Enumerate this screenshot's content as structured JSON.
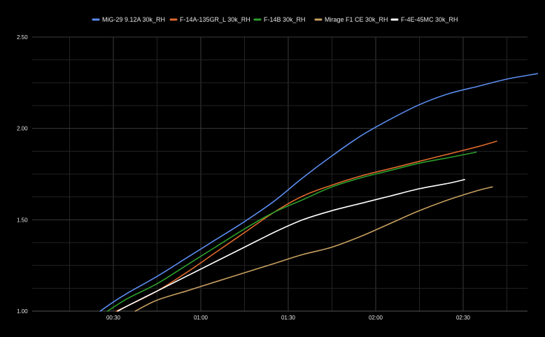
{
  "chart_data": {
    "type": "line",
    "title": "",
    "xlabel": "",
    "ylabel": "",
    "x_unit": "seconds",
    "xlim": [
      0,
      180
    ],
    "ylim": [
      1.0,
      2.5
    ],
    "x_ticks": [
      {
        "value": 30,
        "label": "00:30"
      },
      {
        "value": 60,
        "label": "01:00"
      },
      {
        "value": 90,
        "label": "01:30"
      },
      {
        "value": 120,
        "label": "02:00"
      },
      {
        "value": 150,
        "label": "02:30"
      }
    ],
    "y_ticks": [
      {
        "value": 1.0,
        "label": "1.00"
      },
      {
        "value": 1.5,
        "label": "1.50"
      },
      {
        "value": 2.0,
        "label": "2.00"
      },
      {
        "value": 2.5,
        "label": "2.50"
      }
    ],
    "grid": true,
    "legend_position": "top-center",
    "background": "#000000",
    "series": [
      {
        "name": "MiG-29 9.12A 30k_RH",
        "color": "#5b8def",
        "points": [
          [
            25.5,
            1.0
          ],
          [
            30,
            1.05
          ],
          [
            35,
            1.1
          ],
          [
            45,
            1.19
          ],
          [
            55,
            1.29
          ],
          [
            65,
            1.39
          ],
          [
            75,
            1.49
          ],
          [
            85,
            1.6
          ],
          [
            95,
            1.73
          ],
          [
            105,
            1.85
          ],
          [
            115,
            1.96
          ],
          [
            125,
            2.05
          ],
          [
            135,
            2.13
          ],
          [
            145,
            2.19
          ],
          [
            155,
            2.23
          ],
          [
            165,
            2.27
          ],
          [
            175.5,
            2.3
          ]
        ]
      },
      {
        "name": "F-14A-135GR_L 30k_RH",
        "color": "#e06a2c",
        "points": [
          [
            31,
            1.0
          ],
          [
            35,
            1.03
          ],
          [
            45,
            1.11
          ],
          [
            55,
            1.21
          ],
          [
            65,
            1.32
          ],
          [
            75,
            1.43
          ],
          [
            85,
            1.54
          ],
          [
            95,
            1.63
          ],
          [
            105,
            1.69
          ],
          [
            115,
            1.74
          ],
          [
            125,
            1.78
          ],
          [
            135,
            1.82
          ],
          [
            145,
            1.86
          ],
          [
            155,
            1.9
          ],
          [
            161.5,
            1.93
          ]
        ]
      },
      {
        "name": "F-14B 30k_RH",
        "color": "#2ca02c",
        "points": [
          [
            28,
            1.0
          ],
          [
            35,
            1.07
          ],
          [
            45,
            1.15
          ],
          [
            55,
            1.25
          ],
          [
            65,
            1.35
          ],
          [
            75,
            1.45
          ],
          [
            85,
            1.54
          ],
          [
            95,
            1.61
          ],
          [
            105,
            1.68
          ],
          [
            115,
            1.73
          ],
          [
            125,
            1.77
          ],
          [
            135,
            1.81
          ],
          [
            145,
            1.84
          ],
          [
            154.5,
            1.87
          ]
        ]
      },
      {
        "name": "Mirage F1 CE 30k_RH",
        "color": "#c8a060",
        "points": [
          [
            37.5,
            1.0
          ],
          [
            45,
            1.06
          ],
          [
            55,
            1.11
          ],
          [
            65,
            1.16
          ],
          [
            75,
            1.21
          ],
          [
            85,
            1.26
          ],
          [
            95,
            1.31
          ],
          [
            105,
            1.35
          ],
          [
            115,
            1.41
          ],
          [
            125,
            1.48
          ],
          [
            135,
            1.55
          ],
          [
            145,
            1.61
          ],
          [
            155,
            1.66
          ],
          [
            160,
            1.68
          ]
        ]
      },
      {
        "name": "F-4E-45MC 30k_RH",
        "color": "#ffffff",
        "points": [
          [
            31.5,
            1.0
          ],
          [
            35,
            1.03
          ],
          [
            45,
            1.11
          ],
          [
            55,
            1.19
          ],
          [
            65,
            1.27
          ],
          [
            75,
            1.35
          ],
          [
            85,
            1.43
          ],
          [
            95,
            1.5
          ],
          [
            105,
            1.55
          ],
          [
            115,
            1.59
          ],
          [
            125,
            1.63
          ],
          [
            135,
            1.67
          ],
          [
            145,
            1.7
          ],
          [
            150.5,
            1.72
          ]
        ]
      }
    ]
  }
}
